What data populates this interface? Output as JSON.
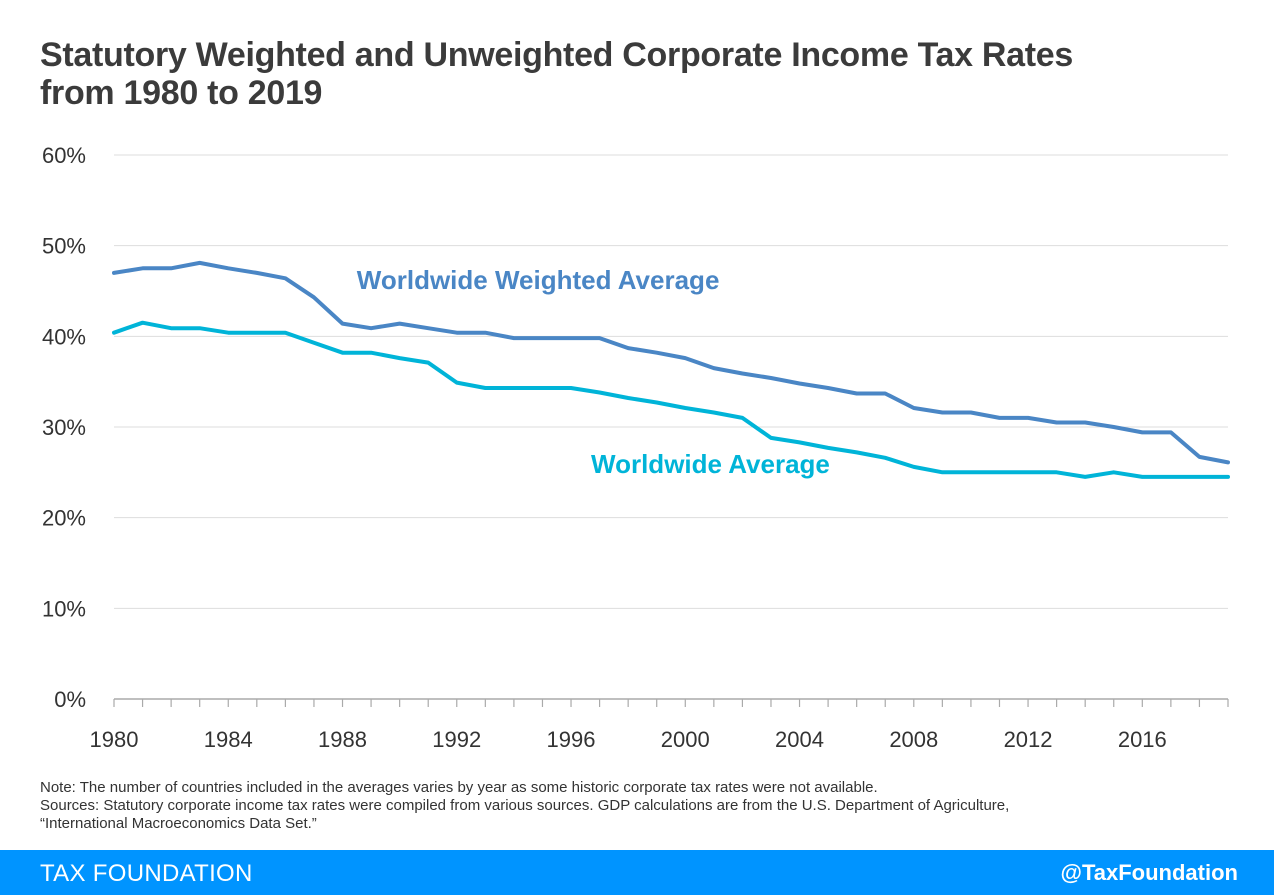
{
  "title": {
    "line1": "Statutory Weighted and Unweighted Corporate Income Tax Rates",
    "line2": "from 1980 to 2019"
  },
  "chart_data": {
    "type": "line",
    "x": [
      1980,
      1981,
      1982,
      1983,
      1984,
      1985,
      1986,
      1987,
      1988,
      1989,
      1990,
      1991,
      1992,
      1993,
      1994,
      1995,
      1996,
      1997,
      1998,
      1999,
      2000,
      2001,
      2002,
      2003,
      2004,
      2005,
      2006,
      2007,
      2008,
      2009,
      2010,
      2011,
      2012,
      2013,
      2014,
      2015,
      2016,
      2017,
      2018,
      2019
    ],
    "series": [
      {
        "name": "Worldwide Weighted Average",
        "color": "#4a86c5",
        "values": [
          47.0,
          47.5,
          47.5,
          48.1,
          47.5,
          47.0,
          46.4,
          44.3,
          41.4,
          40.9,
          41.4,
          40.9,
          40.4,
          40.4,
          39.8,
          39.8,
          39.8,
          39.8,
          38.7,
          38.2,
          37.6,
          36.5,
          35.9,
          35.4,
          34.8,
          34.3,
          33.7,
          33.7,
          32.1,
          31.6,
          31.6,
          31.0,
          31.0,
          30.5,
          30.5,
          30.0,
          29.4,
          29.4,
          26.7,
          26.1
        ]
      },
      {
        "name": "Worldwide Average",
        "color": "#00b4d8",
        "values": [
          40.4,
          41.5,
          40.9,
          40.9,
          40.4,
          40.4,
          40.4,
          39.3,
          38.2,
          38.2,
          37.6,
          37.1,
          34.9,
          34.3,
          34.3,
          34.3,
          34.3,
          33.8,
          33.2,
          32.7,
          32.1,
          31.6,
          31.0,
          28.8,
          28.3,
          27.7,
          27.2,
          26.6,
          25.6,
          25.0,
          25.0,
          25.0,
          25.0,
          25.0,
          24.5,
          25.0,
          24.5,
          24.5,
          24.5,
          24.5
        ]
      }
    ],
    "x_ticks": [
      "1980",
      "1984",
      "1988",
      "1992",
      "1996",
      "2000",
      "2004",
      "2008",
      "2012",
      "2016"
    ],
    "y_ticks": [
      "0%",
      "10%",
      "20%",
      "30%",
      "40%",
      "50%",
      "60%"
    ],
    "xlim": [
      1980,
      2019
    ],
    "ylim": [
      0,
      60
    ],
    "grid": "horizontal",
    "legend": "inline labels"
  },
  "notes": {
    "note": "Note: The number of countries included in the averages varies by year as some historic corporate tax rates were not available.",
    "sources_line1": "Sources: Statutory corporate income tax rates were compiled from various sources. GDP calculations are from the U.S. Department of Agriculture,",
    "sources_line2": "“International Macroeconomics Data Set.”"
  },
  "footer": {
    "brand": "TAX FOUNDATION",
    "handle": "@TaxFoundation",
    "color": "#0094ff"
  }
}
